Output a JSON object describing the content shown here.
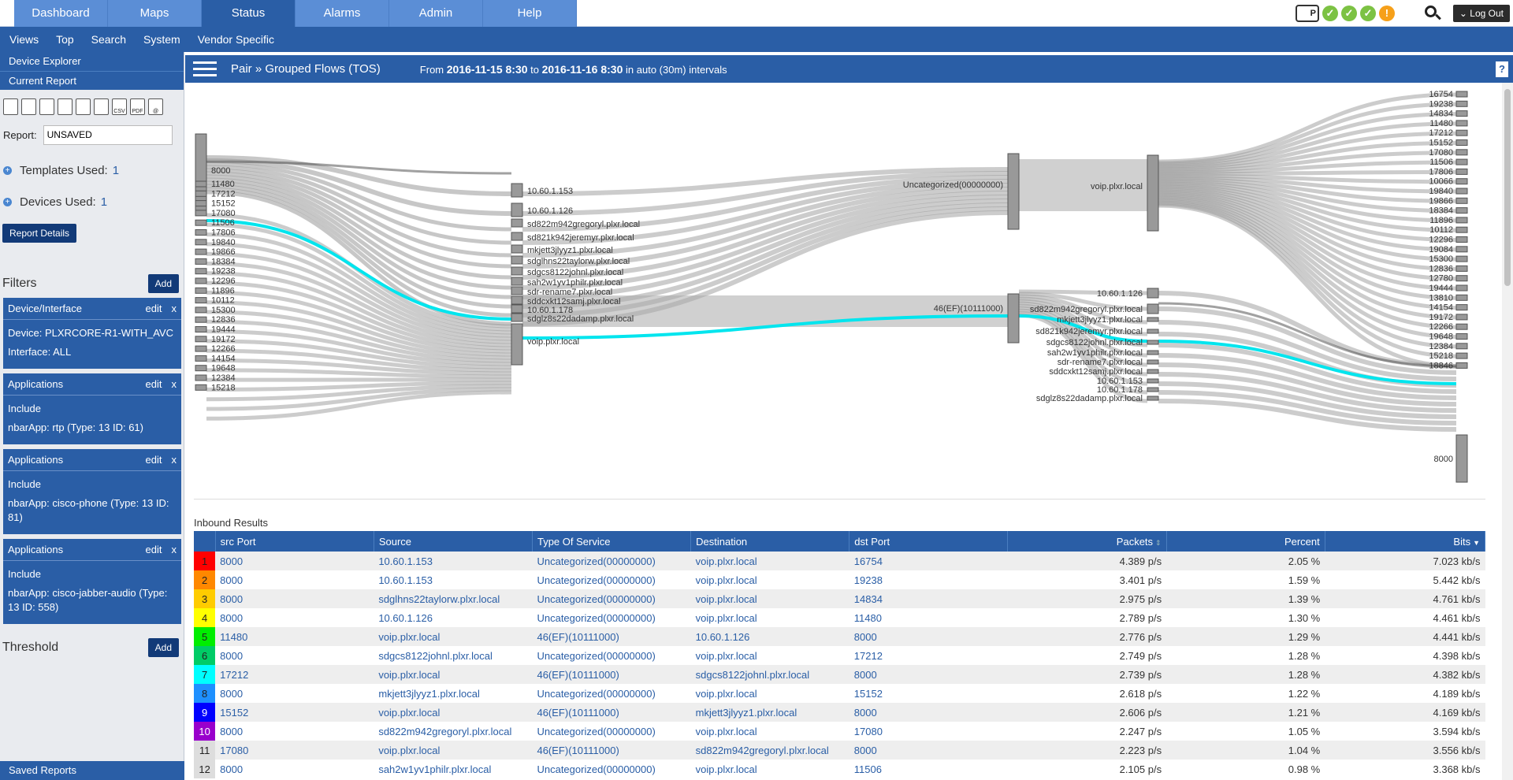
{
  "nav": {
    "tabs": [
      "Dashboard",
      "Maps",
      "Status",
      "Alarms",
      "Admin",
      "Help"
    ],
    "active": "Status",
    "logout": "Log Out",
    "subnav": [
      "Views",
      "Top",
      "Search",
      "System",
      "Vendor Specific"
    ]
  },
  "sidebar": {
    "device_explorer": "Device Explorer",
    "current_report": "Current Report",
    "toolbar_icons": [
      "trash-icon",
      "save-icon",
      "save-as-icon",
      "clock-icon",
      "grid-icon",
      "print-icon",
      "csv-icon",
      "pdf-icon",
      "email-icon"
    ],
    "csv": "CSV",
    "pdf": "PDF",
    "at": "@",
    "report_label": "Report:",
    "report_value": "UNSAVED",
    "templates_label": "Templates Used:",
    "templates_value": "1",
    "devices_label": "Devices Used:",
    "devices_value": "1",
    "report_details": "Report Details",
    "filters_title": "Filters",
    "add": "Add",
    "edit": "edit",
    "close": "x",
    "filters": [
      {
        "title": "Device/Interface",
        "lines": [
          "Device: PLXRCORE-R1-WITH_AVC",
          "Interface: ALL"
        ]
      },
      {
        "title": "Applications",
        "lines": [
          "Include",
          "nbarApp: rtp (Type: 13 ID: 61)"
        ]
      },
      {
        "title": "Applications",
        "lines": [
          "Include",
          "nbarApp: cisco-phone (Type: 13 ID: 81)"
        ]
      },
      {
        "title": "Applications",
        "lines": [
          "Include",
          "nbarApp: cisco-jabber-audio (Type: 13 ID: 558)"
        ]
      }
    ],
    "threshold_title": "Threshold",
    "saved_reports": "Saved Reports"
  },
  "header": {
    "title": "Pair » Grouped Flows (TOS)",
    "from": "From",
    "start": "2016-11-15 8:30",
    "to": "to",
    "end": "2016-11-16 8:30",
    "interval": "in auto (30m) intervals",
    "help": "?"
  },
  "sankey": {
    "col1": [
      "8000",
      "11480",
      "17212",
      "15152",
      "17080",
      "11506",
      "17806",
      "19840",
      "19866",
      "18384",
      "19238",
      "12296",
      "11896",
      "10112",
      "15300",
      "12836",
      "19444",
      "19172",
      "12266",
      "14154",
      "19648",
      "12384",
      "15218"
    ],
    "col2": [
      "10.60.1.153",
      "10.60.1.126",
      "sd822m942gregoryl.plxr.local",
      "sd821k942jeremyr.plxr.local",
      "mkjett3jlyyz1.plxr.local",
      "sdglhns22taylorw.plxr.local",
      "sdgcs8122johnl.plxr.local",
      "sah2w1yv1philr.plxr.local",
      "sdr-rename7.plxr.local",
      "sddcxkt12samj.plxr.local",
      "10.60.1.178",
      "sdglz8s22dadamp.plxr.local",
      "voip.plxr.local"
    ],
    "col3": [
      "Uncategorized(00000000)",
      "46(EF)(10111000)"
    ],
    "col4": [
      "voip.plxr.local",
      "10.60.1.126",
      "sd822m942gregoryl.plxr.local",
      "mkjett3jlyyz1.plxr.local",
      "sd821k942jeremyr.plxr.local",
      "sdgcs8122johnl.plxr.local",
      "sah2w1yv1philr.plxr.local",
      "sdr-rename7.plxr.local",
      "sddcxkt12samj.plxr.local",
      "10.60.1.153",
      "10.60.1.178",
      "sdglz8s22dadamp.plxr.local"
    ],
    "col5": [
      "16754",
      "19238",
      "14834",
      "11480",
      "17212",
      "15152",
      "17080",
      "11506",
      "17806",
      "10066",
      "19840",
      "19866",
      "18384",
      "11896",
      "10112",
      "12296",
      "19084",
      "15300",
      "12836",
      "12780",
      "19444",
      "13810",
      "14154",
      "19172",
      "12266",
      "19648",
      "12384",
      "15218",
      "18846",
      "8000"
    ]
  },
  "table": {
    "caption": "Inbound Results",
    "columns": [
      "src Port",
      "Source",
      "Type Of Service",
      "Destination",
      "dst Port",
      "Packets",
      "Percent",
      "Bits"
    ],
    "swatches": [
      "#ff0000",
      "#ff8800",
      "#ffcc00",
      "#ffff00",
      "#00ee00",
      "#00cc66",
      "#00ffff",
      "#1e90ff",
      "#0000ff",
      "#9900cc",
      "#dddddd",
      "#dddddd"
    ],
    "rows": [
      [
        "1",
        "8000",
        "10.60.1.153",
        "Uncategorized(00000000)",
        "voip.plxr.local",
        "16754",
        "4.389 p/s",
        "2.05 %",
        "7.023 kb/s"
      ],
      [
        "2",
        "8000",
        "10.60.1.153",
        "Uncategorized(00000000)",
        "voip.plxr.local",
        "19238",
        "3.401 p/s",
        "1.59 %",
        "5.442 kb/s"
      ],
      [
        "3",
        "8000",
        "sdglhns22taylorw.plxr.local",
        "Uncategorized(00000000)",
        "voip.plxr.local",
        "14834",
        "2.975 p/s",
        "1.39 %",
        "4.761 kb/s"
      ],
      [
        "4",
        "8000",
        "10.60.1.126",
        "Uncategorized(00000000)",
        "voip.plxr.local",
        "11480",
        "2.789 p/s",
        "1.30 %",
        "4.461 kb/s"
      ],
      [
        "5",
        "11480",
        "voip.plxr.local",
        "46(EF)(10111000)",
        "10.60.1.126",
        "8000",
        "2.776 p/s",
        "1.29 %",
        "4.441 kb/s"
      ],
      [
        "6",
        "8000",
        "sdgcs8122johnl.plxr.local",
        "Uncategorized(00000000)",
        "voip.plxr.local",
        "17212",
        "2.749 p/s",
        "1.28 %",
        "4.398 kb/s"
      ],
      [
        "7",
        "17212",
        "voip.plxr.local",
        "46(EF)(10111000)",
        "sdgcs8122johnl.plxr.local",
        "8000",
        "2.739 p/s",
        "1.28 %",
        "4.382 kb/s"
      ],
      [
        "8",
        "8000",
        "mkjett3jlyyz1.plxr.local",
        "Uncategorized(00000000)",
        "voip.plxr.local",
        "15152",
        "2.618 p/s",
        "1.22 %",
        "4.189 kb/s"
      ],
      [
        "9",
        "15152",
        "voip.plxr.local",
        "46(EF)(10111000)",
        "mkjett3jlyyz1.plxr.local",
        "8000",
        "2.606 p/s",
        "1.21 %",
        "4.169 kb/s"
      ],
      [
        "10",
        "8000",
        "sd822m942gregoryl.plxr.local",
        "Uncategorized(00000000)",
        "voip.plxr.local",
        "17080",
        "2.247 p/s",
        "1.05 %",
        "3.594 kb/s"
      ],
      [
        "11",
        "17080",
        "voip.plxr.local",
        "46(EF)(10111000)",
        "sd822m942gregoryl.plxr.local",
        "8000",
        "2.223 p/s",
        "1.04 %",
        "3.556 kb/s"
      ],
      [
        "12",
        "8000",
        "sah2w1yv1philr.plxr.local",
        "Uncategorized(00000000)",
        "voip.plxr.local",
        "11506",
        "2.105 p/s",
        "0.98 %",
        "3.368 kb/s"
      ]
    ]
  }
}
